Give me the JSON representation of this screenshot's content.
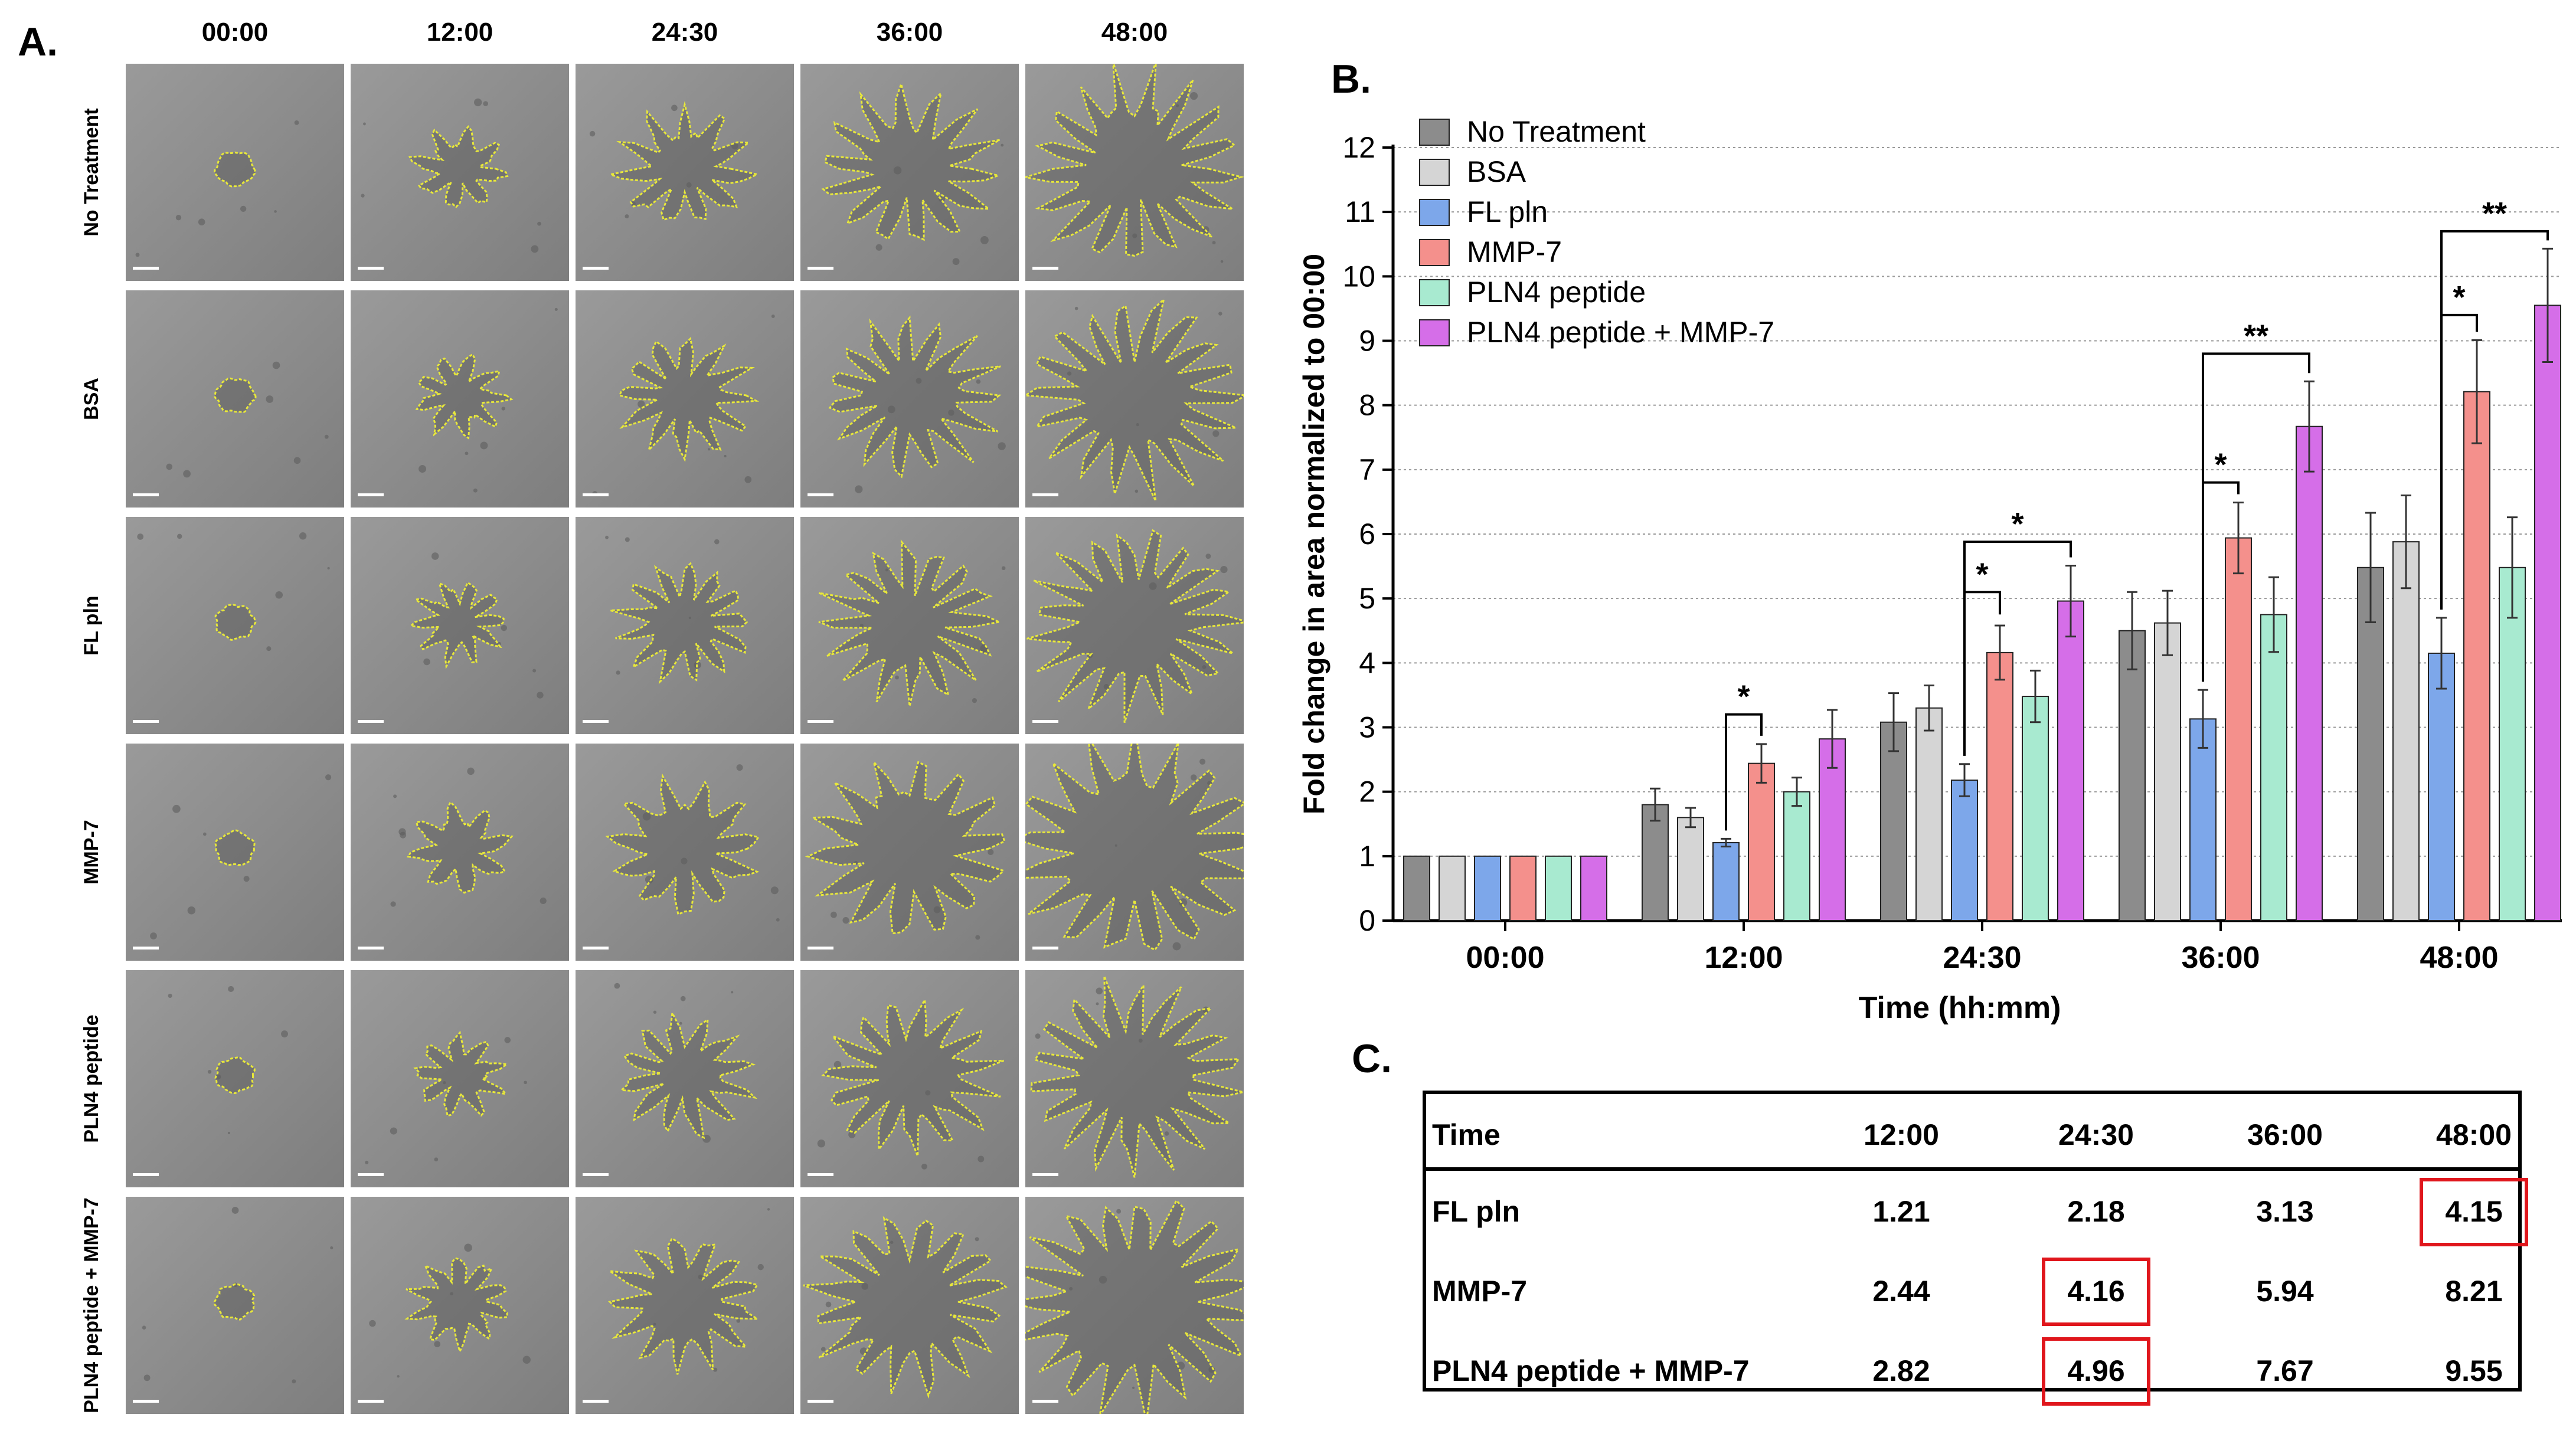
{
  "panel_a": {
    "letter": "A.",
    "columns": [
      "00:00",
      "12:00",
      "24:30",
      "36:00",
      "48:00"
    ],
    "rows": [
      "No Treatment",
      "BSA",
      "FL pln",
      "MMP-7",
      "PLN4 peptide",
      "PLN4 peptide + MMP-7"
    ],
    "outline_color": "#e8e83a"
  },
  "panel_b": {
    "letter": "B."
  },
  "panel_c": {
    "letter": "C."
  },
  "chart_data": [
    {
      "type": "bar",
      "title": "",
      "xlabel": "Time (hh:mm)",
      "ylabel": "Fold change in area normalized to 00:00",
      "categories": [
        "00:00",
        "12:00",
        "24:30",
        "36:00",
        "48:00"
      ],
      "ylim": [
        0,
        12
      ],
      "yticks": [
        0,
        1,
        2,
        3,
        4,
        5,
        6,
        7,
        8,
        9,
        10,
        11,
        12
      ],
      "grid": "horizontal dotted",
      "legend": "top-left",
      "series": [
        {
          "name": "No Treatment",
          "color": "#8c8c8c",
          "values": [
            1,
            1.8,
            3.08,
            4.5,
            5.48
          ],
          "errors": [
            0,
            0.25,
            0.45,
            0.6,
            0.85
          ]
        },
        {
          "name": "BSA",
          "color": "#d5d5d5",
          "values": [
            1,
            1.6,
            3.3,
            4.62,
            5.88
          ],
          "errors": [
            0,
            0.15,
            0.35,
            0.5,
            0.72
          ]
        },
        {
          "name": "FL pln",
          "color": "#7da7ea",
          "values": [
            1,
            1.21,
            2.18,
            3.13,
            4.15
          ],
          "errors": [
            0,
            0.06,
            0.25,
            0.45,
            0.55
          ]
        },
        {
          "name": "MMP-7",
          "color": "#f4908c",
          "values": [
            1,
            2.44,
            4.16,
            5.94,
            8.21
          ],
          "errors": [
            0,
            0.3,
            0.42,
            0.55,
            0.8
          ]
        },
        {
          "name": "PLN4 peptide",
          "color": "#a8ead0",
          "values": [
            1,
            2.0,
            3.48,
            4.75,
            5.48
          ],
          "errors": [
            0,
            0.22,
            0.4,
            0.58,
            0.78
          ]
        },
        {
          "name": "PLN4 peptide + MMP-7",
          "color": "#d56ee8",
          "values": [
            1,
            2.82,
            4.96,
            7.67,
            9.55
          ],
          "errors": [
            0,
            0.45,
            0.55,
            0.7,
            0.88
          ]
        }
      ],
      "significance": [
        {
          "category": "12:00",
          "from": "FL pln",
          "to": "MMP-7",
          "label": "*",
          "level": 3.2
        },
        {
          "category": "24:30",
          "from": "FL pln",
          "to": "MMP-7",
          "label": "*",
          "level": 5.1
        },
        {
          "category": "24:30",
          "from": "FL pln",
          "to": "PLN4 peptide + MMP-7",
          "label": "*",
          "level": 5.88
        },
        {
          "category": "36:00",
          "from": "FL pln",
          "to": "MMP-7",
          "label": "*",
          "level": 6.8
        },
        {
          "category": "36:00",
          "from": "FL pln",
          "to": "PLN4 peptide + MMP-7",
          "label": "**",
          "level": 8.8
        },
        {
          "category": "48:00",
          "from": "FL pln",
          "to": "MMP-7",
          "label": "*",
          "level": 9.4
        },
        {
          "category": "48:00",
          "from": "FL pln",
          "to": "PLN4 peptide + MMP-7",
          "label": "**",
          "level": 10.7
        }
      ]
    },
    {
      "type": "table",
      "columns": [
        "Time",
        "12:00",
        "24:30",
        "36:00",
        "48:00"
      ],
      "rows": [
        {
          "label": "FL pln",
          "values": [
            "1.21",
            "2.18",
            "3.13",
            "4.15"
          ]
        },
        {
          "label": "MMP-7",
          "values": [
            "2.44",
            "4.16",
            "5.94",
            "8.21"
          ]
        },
        {
          "label": "PLN4 peptide + MMP-7",
          "values": [
            "2.82",
            "4.96",
            "7.67",
            "9.55"
          ]
        }
      ],
      "highlighted": [
        {
          "row": "FL pln",
          "column": "48:00"
        },
        {
          "row": "MMP-7",
          "column": "24:30"
        },
        {
          "row": "PLN4 peptide + MMP-7",
          "column": "24:30"
        }
      ],
      "highlight_color": "#e0161c"
    }
  ]
}
